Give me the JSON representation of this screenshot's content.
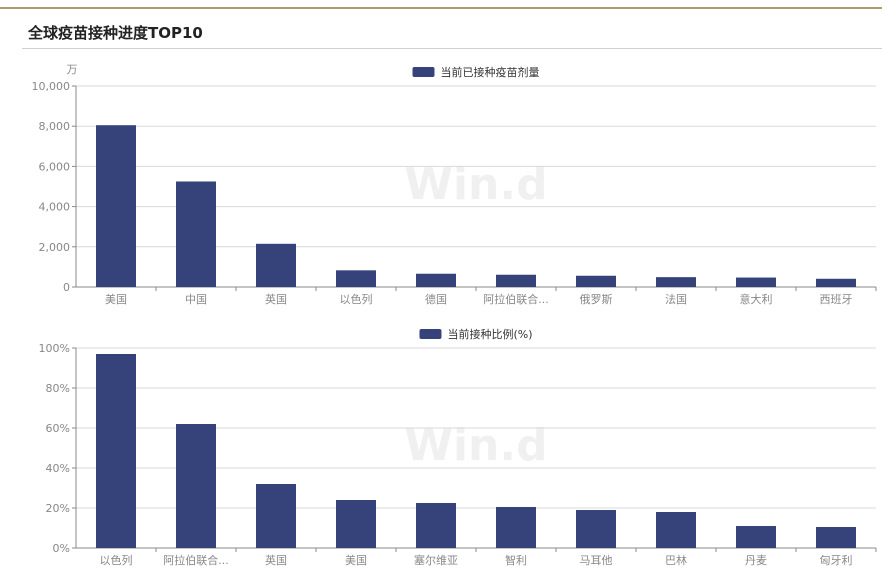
{
  "page": {
    "title": "全球疫苗接种进度TOP10"
  },
  "watermark": "Win.d",
  "colors": {
    "bar": "#36427a",
    "grid": "#d9d9d9",
    "axis": "#888888",
    "accent": "#b39b6b"
  },
  "chart_data": [
    {
      "type": "bar",
      "legend": "当前已接种疫苗剂量",
      "unit_label": "万",
      "categories": [
        "美国",
        "中国",
        "英国",
        "以色列",
        "德国",
        "阿拉伯联合...",
        "俄罗斯",
        "法国",
        "意大利",
        "西班牙"
      ],
      "values": [
        8050,
        5250,
        2150,
        830,
        660,
        610,
        560,
        490,
        470,
        410
      ],
      "ylim": [
        0,
        10000
      ],
      "yticks": [
        0,
        2000,
        4000,
        6000,
        8000,
        10000
      ],
      "ytick_labels": [
        "0",
        "2,000",
        "4,000",
        "6,000",
        "8,000",
        "10,000"
      ],
      "grid": true,
      "legend_position": "top-center"
    },
    {
      "type": "bar",
      "legend": "当前接种比例(%)",
      "categories": [
        "以色列",
        "阿拉伯联合...",
        "英国",
        "美国",
        "塞尔维亚",
        "智利",
        "马耳他",
        "巴林",
        "丹麦",
        "匈牙利"
      ],
      "values": [
        97,
        62,
        32,
        24,
        22.5,
        20.5,
        19,
        18,
        11,
        10.5
      ],
      "ylim": [
        0,
        100
      ],
      "yticks": [
        0,
        20,
        40,
        60,
        80,
        100
      ],
      "ytick_labels": [
        "0%",
        "20%",
        "40%",
        "60%",
        "80%",
        "100%"
      ],
      "grid": true,
      "legend_position": "top-center"
    }
  ]
}
